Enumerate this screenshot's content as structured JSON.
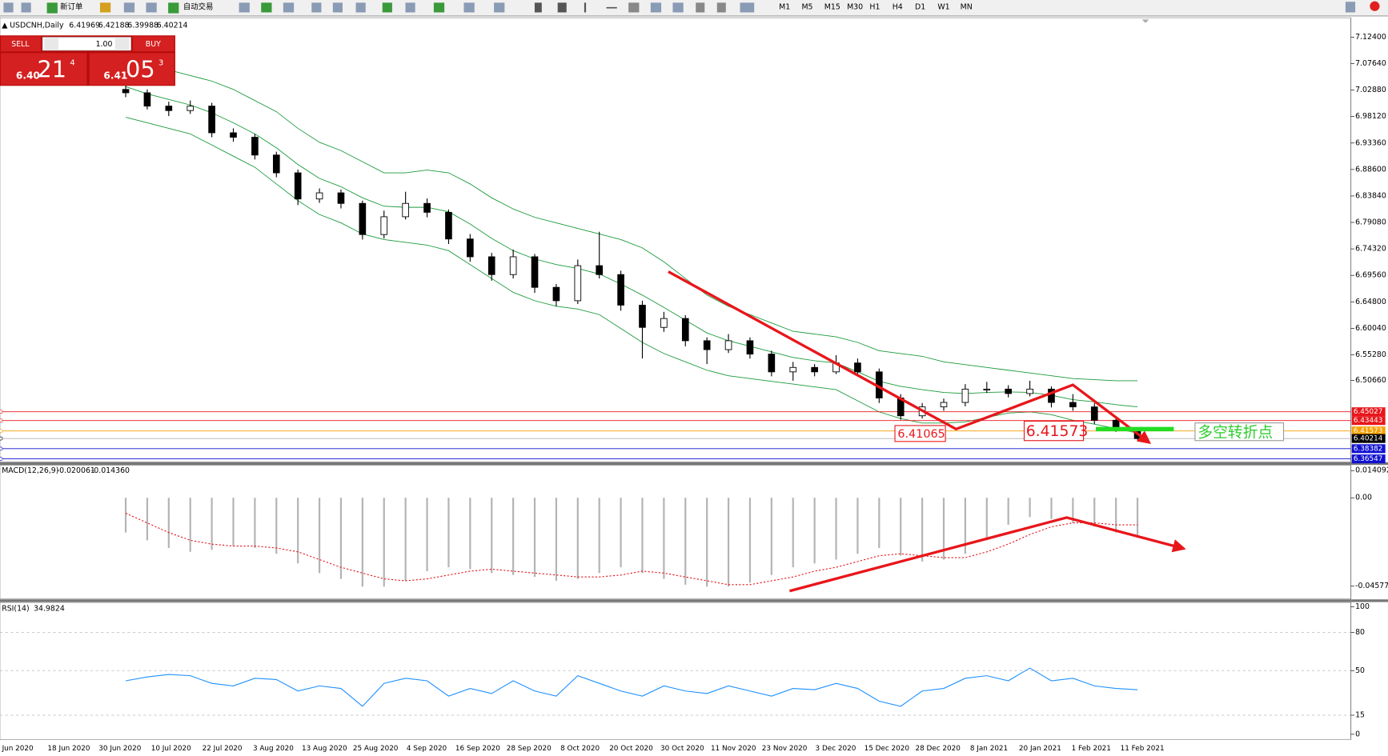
{
  "toolbar": {
    "new_order": "新订单",
    "auto_trading": "自动交易",
    "timeframes": [
      "M1",
      "M5",
      "M15",
      "M30",
      "H1",
      "H4",
      "D1",
      "W1",
      "MN"
    ]
  },
  "trade_panel": {
    "sell": "SELL",
    "buy": "BUY",
    "lots": "1.00",
    "bid": {
      "prefix": "6.40",
      "big": "21",
      "small": "4"
    },
    "ask": {
      "prefix": "6.41",
      "big": "05",
      "small": "3"
    }
  },
  "chart_data": [
    {
      "type": "candlestick",
      "title": "USDCNH,Daily",
      "header_values": [
        6.41969,
        6.42188,
        6.39988,
        6.40214
      ],
      "ohlc": [
        [
          7.03,
          7.038,
          7.016,
          7.024
        ],
        [
          7.024,
          7.03,
          6.994,
          7.0
        ],
        [
          7.0,
          7.008,
          6.982,
          6.992
        ],
        [
          6.992,
          7.01,
          6.986,
          7.0
        ],
        [
          7.0,
          7.006,
          6.944,
          6.952
        ],
        [
          6.952,
          6.96,
          6.936,
          6.944
        ],
        [
          6.944,
          6.95,
          6.904,
          6.912
        ],
        [
          6.912,
          6.918,
          6.872,
          6.88
        ],
        [
          6.88,
          6.886,
          6.822,
          6.833
        ],
        [
          6.833,
          6.852,
          6.826,
          6.844
        ],
        [
          6.844,
          6.85,
          6.816,
          6.825
        ],
        [
          6.825,
          6.83,
          6.76,
          6.769
        ],
        [
          6.769,
          6.812,
          6.762,
          6.801
        ],
        [
          6.801,
          6.846,
          6.796,
          6.825
        ],
        [
          6.825,
          6.834,
          6.8,
          6.809
        ],
        [
          6.809,
          6.814,
          6.752,
          6.761
        ],
        [
          6.761,
          6.77,
          6.72,
          6.729
        ],
        [
          6.729,
          6.736,
          6.686,
          6.697
        ],
        [
          6.697,
          6.742,
          6.69,
          6.729
        ],
        [
          6.729,
          6.734,
          6.664,
          6.674
        ],
        [
          6.674,
          6.68,
          6.64,
          6.65
        ],
        [
          6.65,
          6.724,
          6.644,
          6.713
        ],
        [
          6.713,
          6.774,
          6.69,
          6.697
        ],
        [
          6.697,
          6.704,
          6.632,
          6.642
        ],
        [
          6.642,
          6.65,
          6.546,
          6.602
        ],
        [
          6.602,
          6.63,
          6.594,
          6.618
        ],
        [
          6.618,
          6.624,
          6.568,
          6.578
        ],
        [
          6.578,
          6.584,
          6.536,
          6.562
        ],
        [
          6.562,
          6.59,
          6.556,
          6.578
        ],
        [
          6.578,
          6.584,
          6.546,
          6.554
        ],
        [
          6.554,
          6.56,
          6.514,
          6.522
        ],
        [
          6.522,
          6.54,
          6.506,
          6.53
        ],
        [
          6.53,
          6.536,
          6.514,
          6.522
        ],
        [
          6.522,
          6.552,
          6.518,
          6.538
        ],
        [
          6.538,
          6.546,
          6.514,
          6.522
        ],
        [
          6.522,
          6.528,
          6.466,
          6.475
        ],
        [
          6.475,
          6.482,
          6.436,
          6.443
        ],
        [
          6.443,
          6.466,
          6.438,
          6.459
        ],
        [
          6.459,
          6.474,
          6.452,
          6.467
        ],
        [
          6.467,
          6.5,
          6.46,
          6.491
        ],
        [
          6.491,
          6.504,
          6.484,
          6.491
        ],
        [
          6.491,
          6.498,
          6.476,
          6.483
        ],
        [
          6.483,
          6.506,
          6.478,
          6.491
        ],
        [
          6.491,
          6.496,
          6.458,
          6.467
        ],
        [
          6.467,
          6.482,
          6.452,
          6.459
        ],
        [
          6.459,
          6.466,
          6.428,
          6.435
        ],
        [
          6.435,
          6.442,
          6.414,
          6.422
        ],
        [
          6.419,
          6.422,
          6.4,
          6.402
        ]
      ],
      "band_upper": [
        7.09,
        7.075,
        7.065,
        7.055,
        7.045,
        7.03,
        7.01,
        6.99,
        6.96,
        6.935,
        6.92,
        6.9,
        6.88,
        6.88,
        6.885,
        6.88,
        6.86,
        6.835,
        6.815,
        6.8,
        6.79,
        6.78,
        6.77,
        6.76,
        6.745,
        6.72,
        6.69,
        6.66,
        6.64,
        6.625,
        6.61,
        6.595,
        6.59,
        6.585,
        6.575,
        6.56,
        6.555,
        6.55,
        6.54,
        6.535,
        6.53,
        6.525,
        6.52,
        6.515,
        6.51,
        6.508,
        6.506,
        6.506
      ],
      "band_middle": [
        7.035,
        7.022,
        7.012,
        7.002,
        6.988,
        6.97,
        6.95,
        6.925,
        6.895,
        6.87,
        6.855,
        6.835,
        6.82,
        6.818,
        6.818,
        6.81,
        6.788,
        6.762,
        6.74,
        6.725,
        6.715,
        6.708,
        6.698,
        6.68,
        6.66,
        6.638,
        6.615,
        6.592,
        6.578,
        6.568,
        6.558,
        6.548,
        6.542,
        6.538,
        6.522,
        6.505,
        6.496,
        6.49,
        6.485,
        6.483,
        6.485,
        6.486,
        6.485,
        6.48,
        6.472,
        6.468,
        6.463,
        6.459
      ],
      "band_lower": [
        6.98,
        6.97,
        6.96,
        6.95,
        6.93,
        6.91,
        6.89,
        6.86,
        6.83,
        6.805,
        6.79,
        6.77,
        6.76,
        6.755,
        6.75,
        6.74,
        6.715,
        6.69,
        6.665,
        6.65,
        6.64,
        6.635,
        6.625,
        6.6,
        6.575,
        6.555,
        6.54,
        6.525,
        6.515,
        6.51,
        6.505,
        6.5,
        6.495,
        6.49,
        6.47,
        6.45,
        6.438,
        6.43,
        6.43,
        6.432,
        6.44,
        6.448,
        6.45,
        6.445,
        6.435,
        6.428,
        6.42,
        6.412
      ],
      "band_color": "#1a9a3a",
      "ylim": [
        6.3602,
        7.159
      ],
      "yticks": [
        {
          "value": 7.124,
          "label": "7.12400"
        },
        {
          "value": 7.0764,
          "label": "7.07640"
        },
        {
          "value": 7.0288,
          "label": "7.02880"
        },
        {
          "value": 6.9812,
          "label": "6.98120"
        },
        {
          "value": 6.9336,
          "label": "6.93360"
        },
        {
          "value": 6.886,
          "label": "6.88600"
        },
        {
          "value": 6.8384,
          "label": "6.83840"
        },
        {
          "value": 6.7908,
          "label": "6.79080"
        },
        {
          "value": 6.7432,
          "label": "6.74320"
        },
        {
          "value": 6.6956,
          "label": "6.69560"
        },
        {
          "value": 6.648,
          "label": "6.64800"
        },
        {
          "value": 6.6004,
          "label": "6.60040"
        },
        {
          "value": 6.5528,
          "label": "6.55280"
        },
        {
          "value": 6.5066,
          "label": "6.50660"
        }
      ],
      "levels": [
        {
          "value": 6.45027,
          "color": "#e8161b"
        },
        {
          "value": 6.43443,
          "color": "#e8161b"
        },
        {
          "value": 6.41573,
          "color": "#f5a000"
        },
        {
          "value": 6.40214,
          "color": "#000000"
        },
        {
          "value": 6.38382,
          "color": "#1010d0"
        },
        {
          "value": 6.36547,
          "color": "#1010d0"
        }
      ],
      "annotations": [
        "6.41065",
        "6.41573",
        "多空转折点"
      ],
      "x_labels": [
        "Jun 2020",
        "18 Jun 2020",
        "30 Jun 2020",
        "10 Jul 2020",
        "22 Jul 2020",
        "3 Aug 2020",
        "13 Aug 2020",
        "25 Aug 2020",
        "4 Sep 2020",
        "16 Sep 2020",
        "28 Sep 2020",
        "8 Oct 2020",
        "20 Oct 2020",
        "30 Oct 2020",
        "11 Nov 2020",
        "23 Nov 2020",
        "3 Dec 2020",
        "15 Dec 2020",
        "28 Dec 2020",
        "8 Jan 2021",
        "20 Jan 2021",
        "1 Feb 2021",
        "11 Feb 2021"
      ]
    },
    {
      "type": "macd",
      "title": "MACD(12,26,9)",
      "header_values": [
        -0.020061,
        {
          "value": -0.01436,
          "label": "-0.014360"
        }
      ],
      "histogram": [
        -0.018,
        -0.022,
        -0.026,
        -0.028,
        -0.027,
        -0.025,
        -0.026,
        -0.029,
        -0.034,
        -0.039,
        -0.042,
        -0.046,
        -0.046,
        -0.043,
        -0.038,
        -0.036,
        -0.037,
        -0.039,
        -0.04,
        -0.041,
        -0.043,
        -0.042,
        -0.039,
        -0.036,
        -0.039,
        -0.042,
        -0.045,
        -0.046,
        -0.046,
        -0.044,
        -0.04,
        -0.036,
        -0.034,
        -0.032,
        -0.029,
        -0.026,
        -0.03,
        -0.033,
        -0.032,
        -0.029,
        -0.022,
        -0.014,
        -0.01,
        -0.011,
        -0.013,
        -0.015,
        -0.018,
        -0.02
      ],
      "signal": [
        -0.008,
        -0.013,
        -0.018,
        -0.022,
        -0.024,
        -0.025,
        -0.025,
        -0.026,
        -0.028,
        -0.032,
        -0.036,
        -0.039,
        -0.042,
        -0.043,
        -0.042,
        -0.04,
        -0.038,
        -0.037,
        -0.038,
        -0.039,
        -0.04,
        -0.041,
        -0.041,
        -0.04,
        -0.038,
        -0.039,
        -0.041,
        -0.043,
        -0.045,
        -0.045,
        -0.043,
        -0.041,
        -0.038,
        -0.036,
        -0.033,
        -0.03,
        -0.029,
        -0.03,
        -0.031,
        -0.031,
        -0.028,
        -0.024,
        -0.019,
        -0.015,
        -0.013,
        -0.013,
        -0.014,
        -0.014
      ],
      "histogram_color": "#b4b4b4",
      "signal_color": "#e8161b",
      "ylim": [
        -0.0524,
        0.0168
      ],
      "yticks": [
        0.014092,
        {
          "value": 0,
          "label": "0.00"
        },
        -0.045771
      ]
    },
    {
      "type": "line",
      "title": "RSI(14)",
      "header_values": [
        34.9824
      ],
      "values": [
        42,
        45,
        47,
        46,
        40,
        38,
        44,
        43,
        34,
        38,
        36,
        22,
        40,
        44,
        42,
        30,
        36,
        32,
        42,
        34,
        30,
        46,
        40,
        34,
        30,
        38,
        34,
        32,
        38,
        34,
        30,
        36,
        35,
        40,
        36,
        26,
        22,
        34,
        36,
        44,
        46,
        42,
        52,
        42,
        44,
        38,
        36,
        35
      ],
      "color": "#1e90ff",
      "ylim": [
        0,
        100
      ],
      "yticks": [
        100,
        80,
        50,
        15,
        0
      ]
    }
  ]
}
